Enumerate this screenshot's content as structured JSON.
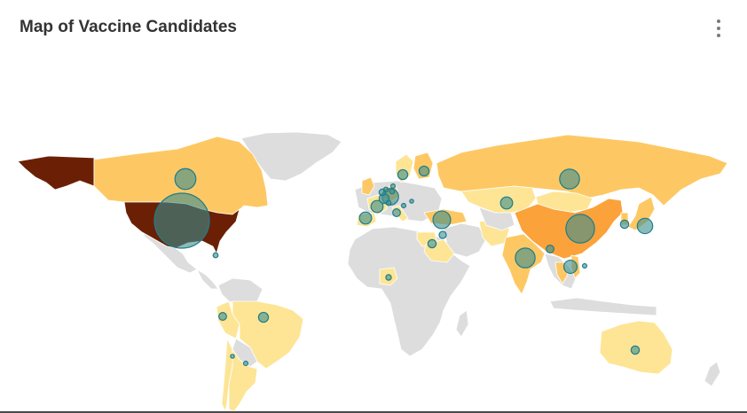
{
  "title": "Map of Vaccine Candidates",
  "menu": {
    "icon": "vertical-ellipsis-icon"
  },
  "colors": {
    "no_data": "#dddddd",
    "scale": [
      "#fde595",
      "#fdc864",
      "#fba23a",
      "#6b2005"
    ],
    "bubble_fill": "#3a8d8e",
    "bubble_stroke": "#1f7c8c"
  },
  "map_data": {
    "type": "choropleth-bubble",
    "countries": [
      {
        "name": "United States",
        "level": 4
      },
      {
        "name": "Alaska (US)",
        "level": 4
      },
      {
        "name": "Canada",
        "level": 2
      },
      {
        "name": "Greenland",
        "level": 0
      },
      {
        "name": "Mexico",
        "level": 0
      },
      {
        "name": "Brazil",
        "level": 1
      },
      {
        "name": "Argentina",
        "level": 1
      },
      {
        "name": "Chile",
        "level": 1
      },
      {
        "name": "Peru",
        "level": 1
      },
      {
        "name": "Russia",
        "level": 2
      },
      {
        "name": "Kazakhstan",
        "level": 1
      },
      {
        "name": "Mongolia",
        "level": 1
      },
      {
        "name": "China",
        "level": 3
      },
      {
        "name": "India",
        "level": 2
      },
      {
        "name": "Thailand",
        "level": 2
      },
      {
        "name": "Vietnam",
        "level": 2
      },
      {
        "name": "Japan",
        "level": 2
      },
      {
        "name": "South Korea",
        "level": 2
      },
      {
        "name": "Australia",
        "level": 1
      },
      {
        "name": "Iran",
        "level": 1
      },
      {
        "name": "Saudi Arabia",
        "level": 1
      },
      {
        "name": "Egypt",
        "level": 1
      },
      {
        "name": "Nigeria",
        "level": 1
      },
      {
        "name": "Turkey",
        "level": 2
      },
      {
        "name": "Finland",
        "level": 2
      },
      {
        "name": "Sweden",
        "level": 1
      },
      {
        "name": "Germany",
        "level": 2
      },
      {
        "name": "France",
        "level": 1
      },
      {
        "name": "United Kingdom",
        "level": 2
      },
      {
        "name": "Spain",
        "level": 1
      },
      {
        "name": "Italy",
        "level": 1
      }
    ],
    "bubbles": [
      {
        "location": "United States",
        "size": 10
      },
      {
        "location": "China",
        "size": 5.2
      },
      {
        "location": "Canada",
        "size": 3.8
      },
      {
        "location": "Russia",
        "size": 3.6
      },
      {
        "location": "India",
        "size": 3.6
      },
      {
        "location": "Turkey",
        "size": 3.2
      },
      {
        "location": "United Kingdom",
        "size": 3.0
      },
      {
        "location": "Japan",
        "size": 2.8
      },
      {
        "location": "Germany",
        "size": 2.2
      },
      {
        "location": "Thailand",
        "size": 2.4
      },
      {
        "location": "Kazakhstan",
        "size": 2.2
      },
      {
        "location": "Spain",
        "size": 2.2
      },
      {
        "location": "France",
        "size": 1.8
      },
      {
        "location": "Sweden",
        "size": 1.8
      },
      {
        "location": "Finland",
        "size": 1.8
      },
      {
        "location": "Brazil",
        "size": 1.8
      },
      {
        "location": "Iran",
        "size": 1.5
      },
      {
        "location": "Australia",
        "size": 1.5
      },
      {
        "location": "South Korea",
        "size": 1.5
      },
      {
        "location": "Vietnam",
        "size": 1.4
      },
      {
        "location": "Peru",
        "size": 1.4
      },
      {
        "location": "Egypt",
        "size": 1.3
      },
      {
        "location": "Nigeria",
        "size": 1.0
      },
      {
        "location": "Cuba",
        "size": 0.9
      },
      {
        "location": "Argentina",
        "size": 0.8
      },
      {
        "location": "Chile",
        "size": 0.7
      },
      {
        "location": "Netherlands",
        "size": 1.2
      },
      {
        "location": "Belgium",
        "size": 0.9
      },
      {
        "location": "Switzerland",
        "size": 0.9
      },
      {
        "location": "Austria",
        "size": 0.8
      },
      {
        "location": "Poland",
        "size": 0.8
      },
      {
        "location": "Italy",
        "size": 1.4
      },
      {
        "location": "Hungary",
        "size": 0.7
      },
      {
        "location": "Malaysia",
        "size": 0.8
      },
      {
        "location": "Denmark",
        "size": 0.9
      }
    ]
  }
}
